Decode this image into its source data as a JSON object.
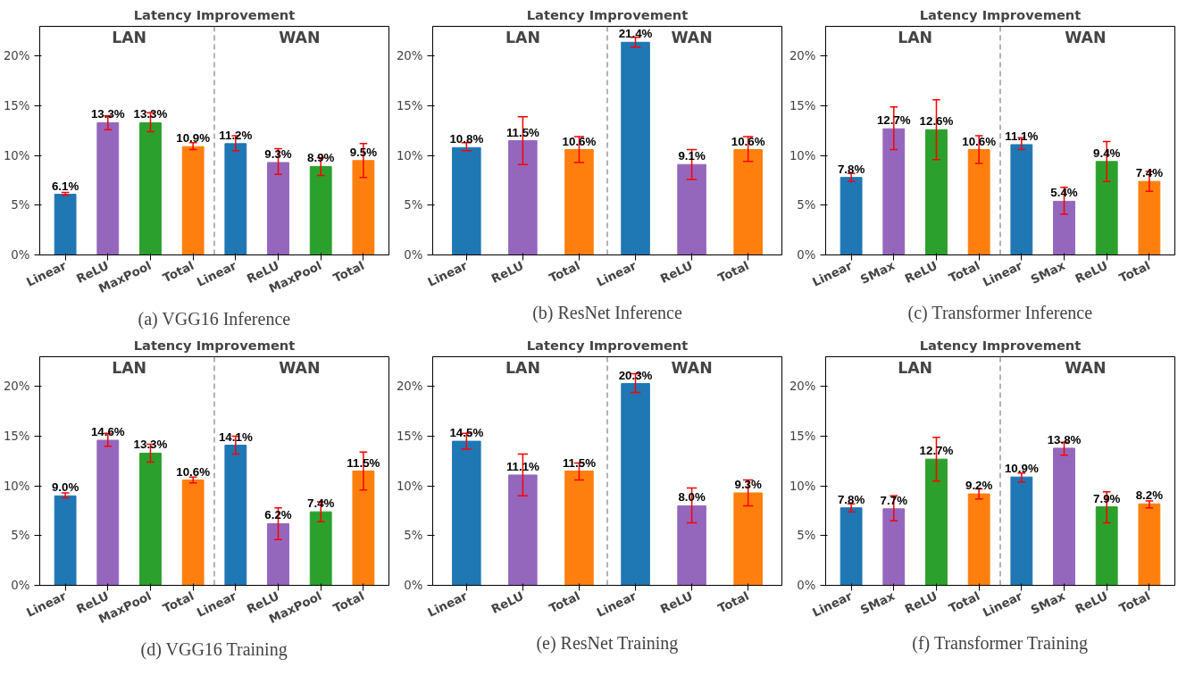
{
  "chart_data": [
    {
      "type": "bar",
      "title": "Latency Improvement",
      "xlabel": "(a) VGG16 Inference",
      "categories": [
        "Linear",
        "ReLU",
        "MaxPool",
        "Total",
        "Linear",
        "ReLU",
        "MaxPool",
        "Total"
      ],
      "values": [
        6.1,
        13.3,
        13.3,
        10.9,
        11.2,
        9.3,
        8.9,
        9.5
      ],
      "value_labels": [
        "6.1%",
        "13.3%",
        "13.3%",
        "10.9%",
        "11.2%",
        "9.3%",
        "8.9%",
        "9.5%"
      ],
      "colors": [
        "#1f77b4",
        "#9467bd",
        "#2ca02c",
        "#ff7f0e",
        "#1f77b4",
        "#9467bd",
        "#2ca02c",
        "#ff7f0e"
      ],
      "errors": [
        [
          6.0,
          6.3
        ],
        [
          12.6,
          14.0
        ],
        [
          12.4,
          14.3
        ],
        [
          10.6,
          11.3
        ],
        [
          10.5,
          12.0
        ],
        [
          8.1,
          10.7
        ],
        [
          8.0,
          9.8
        ],
        [
          7.8,
          11.2
        ]
      ],
      "ylim": [
        0,
        23
      ],
      "yticks": [
        {
          "value": 0,
          "label": "0%"
        },
        {
          "value": 5,
          "label": "5%"
        },
        {
          "value": 10,
          "label": "10%"
        },
        {
          "value": 15,
          "label": "15%"
        },
        {
          "value": 20,
          "label": "20%"
        }
      ],
      "annotations": [
        "LAN",
        "WAN"
      ]
    },
    {
      "type": "bar",
      "title": "Latency Improvement",
      "xlabel": "(b) ResNet Inference",
      "categories": [
        "Linear",
        "ReLU",
        "Total",
        "Linear",
        "ReLU",
        "Total"
      ],
      "values": [
        10.8,
        11.5,
        10.6,
        21.4,
        9.1,
        10.6
      ],
      "value_labels": [
        "10.8%",
        "11.5%",
        "10.6%",
        "21.4%",
        "9.1%",
        "10.6%"
      ],
      "colors": [
        "#1f77b4",
        "#9467bd",
        "#ff7f0e",
        "#1f77b4",
        "#9467bd",
        "#ff7f0e"
      ],
      "errors": [
        [
          10.5,
          11.3
        ],
        [
          9.1,
          13.9
        ],
        [
          9.3,
          11.9
        ],
        [
          20.9,
          21.9
        ],
        [
          7.6,
          10.6
        ],
        [
          9.4,
          11.9
        ]
      ],
      "ylim": [
        0,
        23
      ],
      "yticks": [
        {
          "value": 0,
          "label": "0%"
        },
        {
          "value": 5,
          "label": "5%"
        },
        {
          "value": 10,
          "label": "10%"
        },
        {
          "value": 15,
          "label": "15%"
        },
        {
          "value": 20,
          "label": "20%"
        }
      ],
      "annotations": [
        "LAN",
        "WAN"
      ]
    },
    {
      "type": "bar",
      "title": "Latency Improvement",
      "xlabel": "(c) Transformer Inference",
      "categories": [
        "Linear",
        "SMax",
        "ReLU",
        "Total",
        "Linear",
        "SMax",
        "ReLU",
        "Total"
      ],
      "values": [
        7.8,
        12.7,
        12.6,
        10.6,
        11.1,
        5.4,
        9.4,
        7.4
      ],
      "value_labels": [
        "7.8%",
        "12.7%",
        "12.6%",
        "10.6%",
        "11.1%",
        "5.4%",
        "9.4%",
        "7.4%"
      ],
      "colors": [
        "#1f77b4",
        "#9467bd",
        "#2ca02c",
        "#ff7f0e",
        "#1f77b4",
        "#9467bd",
        "#2ca02c",
        "#ff7f0e"
      ],
      "errors": [
        [
          7.4,
          8.2
        ],
        [
          10.6,
          14.9
        ],
        [
          9.6,
          15.6
        ],
        [
          9.2,
          12.0
        ],
        [
          10.6,
          11.8
        ],
        [
          4.1,
          6.8
        ],
        [
          7.4,
          11.4
        ],
        [
          6.4,
          8.4
        ]
      ],
      "ylim": [
        0,
        23
      ],
      "yticks": [
        {
          "value": 0,
          "label": "0%"
        },
        {
          "value": 5,
          "label": "5%"
        },
        {
          "value": 10,
          "label": "10%"
        },
        {
          "value": 15,
          "label": "15%"
        },
        {
          "value": 20,
          "label": "20%"
        }
      ],
      "annotations": [
        "LAN",
        "WAN"
      ]
    },
    {
      "type": "bar",
      "title": "Latency Improvement",
      "xlabel": "(d) VGG16 Training",
      "categories": [
        "Linear",
        "ReLU",
        "MaxPool",
        "Total",
        "Linear",
        "ReLU",
        "MaxPool",
        "Total"
      ],
      "values": [
        9.0,
        14.6,
        13.3,
        10.6,
        14.1,
        6.2,
        7.4,
        11.5
      ],
      "value_labels": [
        "9.0%",
        "14.6%",
        "13.3%",
        "10.6%",
        "14.1%",
        "6.2%",
        "7.4%",
        "11.5%"
      ],
      "colors": [
        "#1f77b4",
        "#9467bd",
        "#2ca02c",
        "#ff7f0e",
        "#1f77b4",
        "#9467bd",
        "#2ca02c",
        "#ff7f0e"
      ],
      "errors": [
        [
          8.8,
          9.3
        ],
        [
          14.0,
          15.3
        ],
        [
          12.4,
          14.2
        ],
        [
          10.3,
          10.9
        ],
        [
          13.2,
          15.0
        ],
        [
          4.6,
          7.8
        ],
        [
          6.4,
          8.4
        ],
        [
          9.6,
          13.4
        ]
      ],
      "ylim": [
        0,
        23
      ],
      "yticks": [
        {
          "value": 0,
          "label": "0%"
        },
        {
          "value": 5,
          "label": "5%"
        },
        {
          "value": 10,
          "label": "10%"
        },
        {
          "value": 15,
          "label": "15%"
        },
        {
          "value": 20,
          "label": "20%"
        }
      ],
      "annotations": [
        "LAN",
        "WAN"
      ]
    },
    {
      "type": "bar",
      "title": "Latency Improvement",
      "xlabel": "(e) ResNet Training",
      "categories": [
        "Linear",
        "ReLU",
        "Total",
        "Linear",
        "ReLU",
        "Total"
      ],
      "values": [
        14.5,
        11.1,
        11.5,
        20.3,
        8.0,
        9.3
      ],
      "value_labels": [
        "14.5%",
        "11.1%",
        "11.5%",
        "20.3%",
        "8.0%",
        "9.3%"
      ],
      "colors": [
        "#1f77b4",
        "#9467bd",
        "#ff7f0e",
        "#1f77b4",
        "#9467bd",
        "#ff7f0e"
      ],
      "errors": [
        [
          13.7,
          15.3
        ],
        [
          9.0,
          13.2
        ],
        [
          10.6,
          12.3
        ],
        [
          19.4,
          21.3
        ],
        [
          6.3,
          9.8
        ],
        [
          8.0,
          10.6
        ]
      ],
      "ylim": [
        0,
        23
      ],
      "yticks": [
        {
          "value": 0,
          "label": "0%"
        },
        {
          "value": 5,
          "label": "5%"
        },
        {
          "value": 10,
          "label": "10%"
        },
        {
          "value": 15,
          "label": "15%"
        },
        {
          "value": 20,
          "label": "20%"
        }
      ],
      "annotations": [
        "LAN",
        "WAN"
      ]
    },
    {
      "type": "bar",
      "title": "Latency Improvement",
      "xlabel": "(f) Transformer Training",
      "categories": [
        "Linear",
        "SMax",
        "ReLU",
        "Total",
        "Linear",
        "SMax",
        "ReLU",
        "Total"
      ],
      "values": [
        7.8,
        7.7,
        12.7,
        9.2,
        10.9,
        13.8,
        7.9,
        8.2
      ],
      "value_labels": [
        "7.8%",
        "7.7%",
        "12.7%",
        "9.2%",
        "10.9%",
        "13.8%",
        "7.9%",
        "8.2%"
      ],
      "colors": [
        "#1f77b4",
        "#9467bd",
        "#2ca02c",
        "#ff7f0e",
        "#1f77b4",
        "#9467bd",
        "#2ca02c",
        "#ff7f0e"
      ],
      "errors": [
        [
          7.4,
          8.2
        ],
        [
          6.5,
          9.0
        ],
        [
          10.5,
          14.9
        ],
        [
          8.7,
          9.7
        ],
        [
          10.4,
          11.3
        ],
        [
          13.1,
          14.4
        ],
        [
          6.3,
          9.4
        ],
        [
          7.8,
          8.5
        ]
      ],
      "ylim": [
        0,
        23
      ],
      "yticks": [
        {
          "value": 0,
          "label": "0%"
        },
        {
          "value": 5,
          "label": "5%"
        },
        {
          "value": 10,
          "label": "10%"
        },
        {
          "value": 15,
          "label": "15%"
        },
        {
          "value": 20,
          "label": "20%"
        }
      ],
      "annotations": [
        "LAN",
        "WAN"
      ]
    }
  ]
}
